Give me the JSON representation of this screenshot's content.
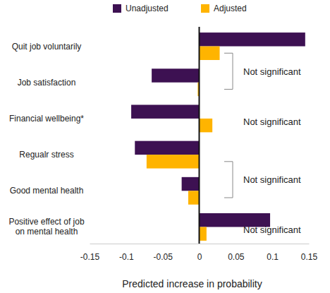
{
  "chart_data": {
    "type": "bar",
    "orientation": "horizontal",
    "legend": "top",
    "categories": [
      "Quit job voluntarily",
      "Job satisfaction",
      "Financial wellbeing*",
      "Regualr stress",
      "Good mental health",
      "Positive effect of job on mental health"
    ],
    "series": [
      {
        "name": "Unadjusted",
        "color": "#3d1152",
        "values": [
          0.145,
          -0.065,
          -0.093,
          -0.088,
          -0.024,
          0.097
        ]
      },
      {
        "name": "Adjusted",
        "color": "#ffb400",
        "values": [
          0.028,
          -0.002,
          0.018,
          -0.072,
          -0.015,
          0.01
        ]
      }
    ],
    "x_label": "Predicted increase in probability",
    "xlim": [
      -0.15,
      0.15
    ],
    "xticks": [
      -0.15,
      -0.1,
      -0.05,
      0,
      0.05,
      0.1,
      0.15
    ],
    "grid": false,
    "annotations": [
      {
        "text": "Not significant",
        "categories": [
          "Quit job voluntarily",
          "Job satisfaction"
        ]
      },
      {
        "text": "Not significant",
        "categories": [
          "Financial wellbeing*"
        ]
      },
      {
        "text": "Not significant",
        "categories": [
          "Regualr stress",
          "Good mental health"
        ]
      },
      {
        "text": "Not significant",
        "categories": [
          "Positive effect of job on mental health"
        ]
      }
    ]
  }
}
